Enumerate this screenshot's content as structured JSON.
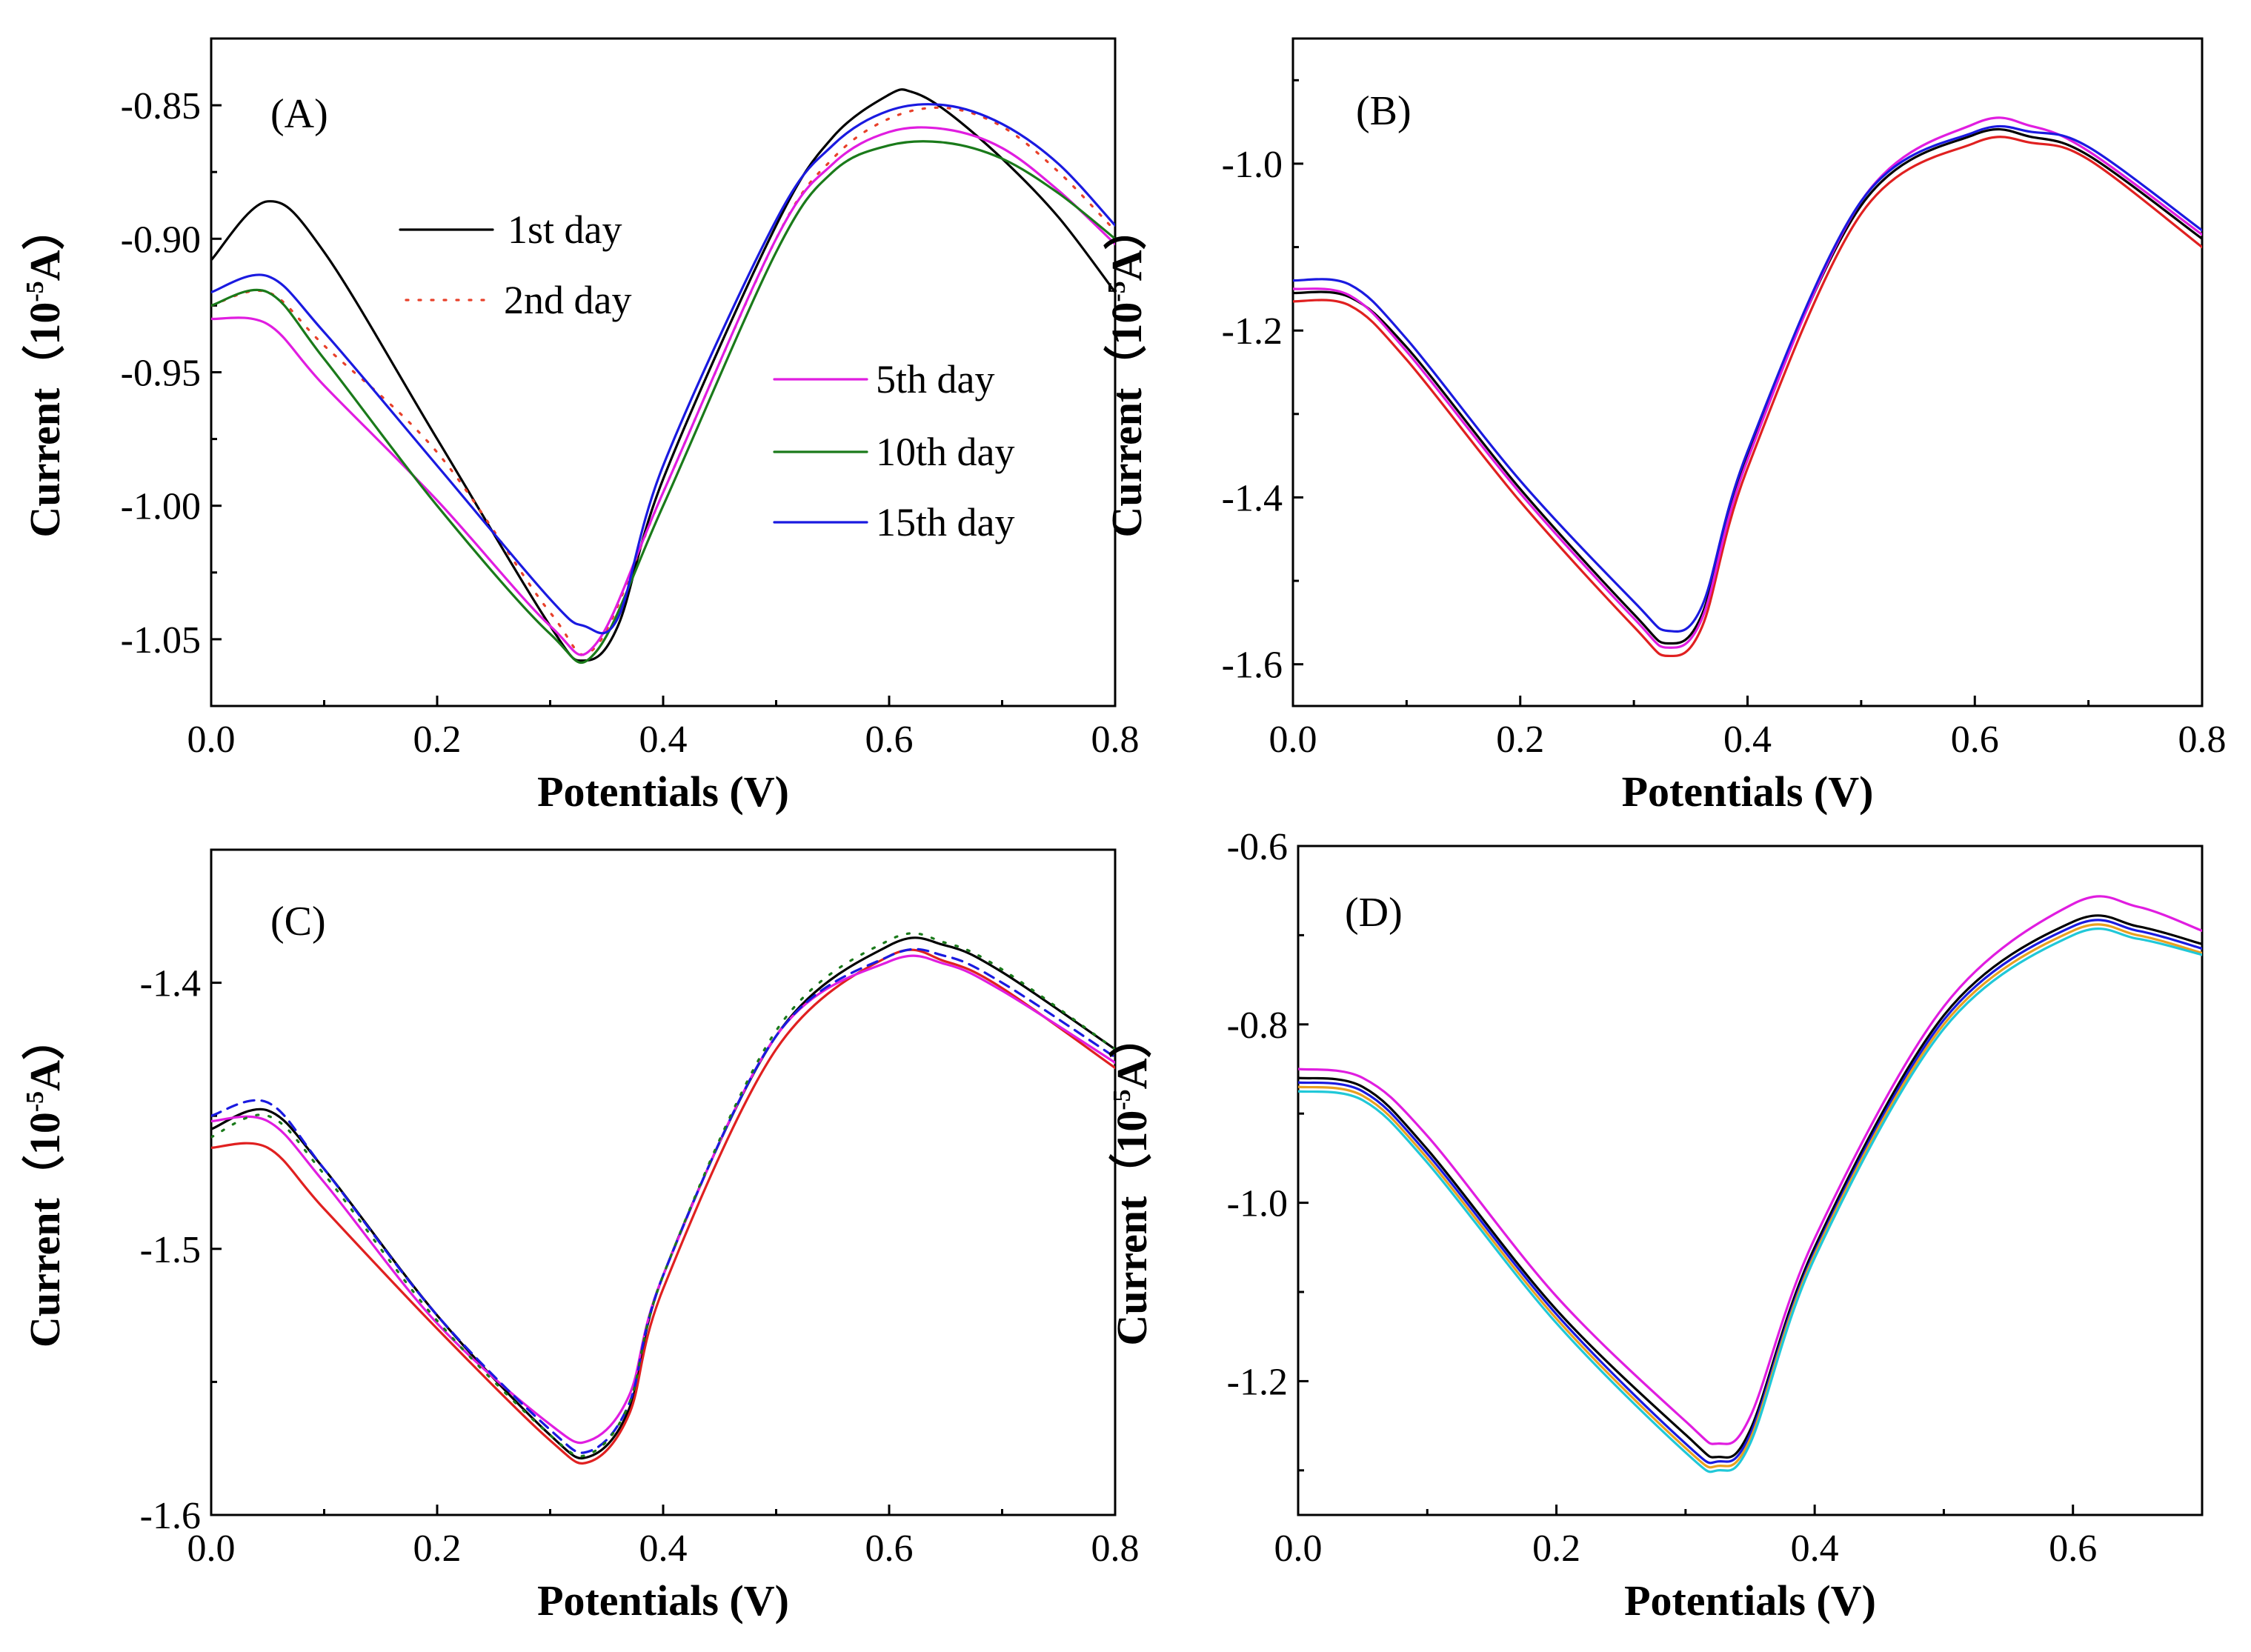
{
  "chart_data": [
    {
      "panel": "A",
      "type": "line",
      "label": "(A)",
      "xlabel": "Potentials (V)",
      "ylabel": "Current（10-5A）",
      "ylabel_base": "Current（10",
      "ylabel_exp": "-5",
      "ylabel_unit": "A）",
      "xlim": [
        0.0,
        0.8
      ],
      "ylim": [
        -1.075,
        -0.825
      ],
      "xticks": [
        0.0,
        0.2,
        0.4,
        0.6,
        0.8
      ],
      "xtick_labels": [
        "0.0",
        "0.2",
        "0.4",
        "0.6",
        "0.8"
      ],
      "yticks": [
        -1.05,
        -1.0,
        -0.95,
        -0.9,
        -0.85
      ],
      "ytick_labels": [
        "-1.05",
        "-1.00",
        "-0.95",
        "-0.90",
        "-0.85"
      ],
      "legend": {
        "placement": "center"
      },
      "series": [
        {
          "name": "1st day",
          "color": "#000000",
          "dash": "solid",
          "in_legend": true,
          "x": [
            0.0,
            0.05,
            0.1,
            0.2,
            0.3,
            0.33,
            0.36,
            0.4,
            0.5,
            0.55,
            0.6,
            0.62,
            0.65,
            0.7,
            0.75,
            0.8
          ],
          "y": [
            -0.908,
            -0.886,
            -0.905,
            -0.975,
            -1.045,
            -1.058,
            -1.045,
            -0.99,
            -0.895,
            -0.862,
            -0.846,
            -0.845,
            -0.852,
            -0.87,
            -0.892,
            -0.92
          ]
        },
        {
          "name": "2nd day",
          "color": "#e8402a",
          "dash": "dotted",
          "in_legend": true,
          "x": [
            0.0,
            0.05,
            0.1,
            0.2,
            0.3,
            0.34,
            0.4,
            0.5,
            0.55,
            0.6,
            0.65,
            0.7,
            0.75,
            0.8
          ],
          "y": [
            -0.925,
            -0.92,
            -0.94,
            -0.98,
            -1.04,
            -1.053,
            -0.995,
            -0.9,
            -0.87,
            -0.855,
            -0.851,
            -0.858,
            -0.875,
            -0.897
          ]
        },
        {
          "name": "5th day",
          "color": "#e01de0",
          "dash": "solid",
          "in_legend": true,
          "x": [
            0.0,
            0.05,
            0.1,
            0.2,
            0.3,
            0.34,
            0.4,
            0.5,
            0.55,
            0.6,
            0.65,
            0.7,
            0.75,
            0.8
          ],
          "y": [
            -0.93,
            -0.932,
            -0.955,
            -0.998,
            -1.045,
            -1.052,
            -0.995,
            -0.9,
            -0.872,
            -0.86,
            -0.859,
            -0.866,
            -0.882,
            -0.902
          ]
        },
        {
          "name": "10th day",
          "color": "#1a7a1a",
          "dash": "solid",
          "in_legend": true,
          "x": [
            0.0,
            0.05,
            0.1,
            0.2,
            0.3,
            0.34,
            0.4,
            0.5,
            0.55,
            0.6,
            0.65,
            0.7,
            0.75,
            0.8
          ],
          "y": [
            -0.925,
            -0.92,
            -0.945,
            -1.0,
            -1.048,
            -1.055,
            -1.0,
            -0.905,
            -0.875,
            -0.865,
            -0.864,
            -0.87,
            -0.883,
            -0.9
          ]
        },
        {
          "name": "15th day",
          "color": "#1a1ae0",
          "dash": "solid",
          "in_legend": true,
          "x": [
            0.0,
            0.05,
            0.1,
            0.2,
            0.3,
            0.33,
            0.36,
            0.4,
            0.5,
            0.55,
            0.6,
            0.65,
            0.7,
            0.75,
            0.8
          ],
          "y": [
            -0.92,
            -0.914,
            -0.935,
            -0.985,
            -1.035,
            -1.045,
            -1.042,
            -0.985,
            -0.893,
            -0.865,
            -0.852,
            -0.85,
            -0.857,
            -0.872,
            -0.895
          ]
        }
      ]
    },
    {
      "panel": "B",
      "type": "line",
      "label": "(B)",
      "xlabel": "Potentials (V)",
      "ylabel": "Current（10-5A）",
      "ylabel_base": "Current（10",
      "ylabel_exp": "-5",
      "ylabel_unit": "A）",
      "xlim": [
        0.0,
        0.8
      ],
      "ylim": [
        -1.65,
        -0.85
      ],
      "xticks": [
        0.0,
        0.2,
        0.4,
        0.6,
        0.8
      ],
      "xtick_labels": [
        "0.0",
        "0.2",
        "0.4",
        "0.6",
        "0.8"
      ],
      "yticks": [
        -1.6,
        -1.4,
        -1.2,
        -1.0
      ],
      "ytick_labels": [
        "-1.6",
        "-1.4",
        "-1.2",
        "-1.0"
      ],
      "series": [
        {
          "name": "",
          "color": "#000000",
          "dash": "solid",
          "x": [
            0.0,
            0.05,
            0.1,
            0.2,
            0.3,
            0.33,
            0.36,
            0.4,
            0.5,
            0.6,
            0.65,
            0.7,
            0.8
          ],
          "y": [
            -1.155,
            -1.16,
            -1.22,
            -1.39,
            -1.54,
            -1.575,
            -1.54,
            -1.35,
            -1.05,
            -0.965,
            -0.968,
            -0.99,
            -1.09
          ]
        },
        {
          "name": "",
          "color": "#e02020",
          "dash": "solid",
          "x": [
            0.0,
            0.05,
            0.1,
            0.2,
            0.3,
            0.33,
            0.36,
            0.4,
            0.5,
            0.6,
            0.65,
            0.7,
            0.8
          ],
          "y": [
            -1.165,
            -1.17,
            -1.235,
            -1.405,
            -1.555,
            -1.59,
            -1.555,
            -1.365,
            -1.06,
            -0.975,
            -0.975,
            -0.995,
            -1.1
          ]
        },
        {
          "name": "",
          "color": "#e01de0",
          "dash": "solid",
          "x": [
            0.0,
            0.05,
            0.1,
            0.2,
            0.3,
            0.33,
            0.36,
            0.4,
            0.5,
            0.6,
            0.65,
            0.7,
            0.8
          ],
          "y": [
            -1.15,
            -1.158,
            -1.225,
            -1.395,
            -1.545,
            -1.58,
            -1.545,
            -1.355,
            -1.045,
            -0.952,
            -0.955,
            -0.985,
            -1.085
          ]
        },
        {
          "name": "",
          "color": "#1a1ae0",
          "dash": "solid",
          "x": [
            0.0,
            0.05,
            0.1,
            0.2,
            0.3,
            0.33,
            0.36,
            0.4,
            0.5,
            0.6,
            0.65,
            0.7,
            0.8
          ],
          "y": [
            -1.14,
            -1.145,
            -1.21,
            -1.38,
            -1.525,
            -1.56,
            -1.53,
            -1.345,
            -1.045,
            -0.962,
            -0.962,
            -0.98,
            -1.08
          ]
        }
      ]
    },
    {
      "panel": "C",
      "type": "line",
      "label": "(C)",
      "xlabel": "Potentials (V)",
      "ylabel": "Current（10-5A）",
      "ylabel_base": "Current（10",
      "ylabel_exp": "-5",
      "ylabel_unit": "A）",
      "xlim": [
        0.0,
        0.8
      ],
      "ylim": [
        -1.6,
        -1.35
      ],
      "xticks": [
        0.0,
        0.2,
        0.4,
        0.6,
        0.8
      ],
      "xtick_labels": [
        "0.0",
        "0.2",
        "0.4",
        "0.6",
        "0.8"
      ],
      "yticks": [
        -1.6,
        -1.5,
        -1.4
      ],
      "ytick_labels": [
        "-1.6",
        "-1.5",
        "-1.4"
      ],
      "series": [
        {
          "name": "",
          "color": "#000000",
          "dash": "solid",
          "x": [
            0.0,
            0.05,
            0.1,
            0.2,
            0.3,
            0.335,
            0.37,
            0.4,
            0.5,
            0.6,
            0.65,
            0.7,
            0.8
          ],
          "y": [
            -1.455,
            -1.448,
            -1.47,
            -1.525,
            -1.57,
            -1.578,
            -1.56,
            -1.51,
            -1.42,
            -1.386,
            -1.386,
            -1.396,
            -1.425
          ]
        },
        {
          "name": "",
          "color": "#e02020",
          "dash": "solid",
          "x": [
            0.0,
            0.05,
            0.1,
            0.2,
            0.3,
            0.335,
            0.37,
            0.4,
            0.5,
            0.6,
            0.65,
            0.7,
            0.8
          ],
          "y": [
            -1.462,
            -1.462,
            -1.485,
            -1.53,
            -1.572,
            -1.58,
            -1.562,
            -1.515,
            -1.425,
            -1.39,
            -1.392,
            -1.402,
            -1.432
          ]
        },
        {
          "name": "",
          "color": "#e01de0",
          "dash": "solid",
          "x": [
            0.0,
            0.05,
            0.1,
            0.2,
            0.3,
            0.335,
            0.37,
            0.4,
            0.5,
            0.6,
            0.65,
            0.7,
            0.8
          ],
          "y": [
            -1.452,
            -1.452,
            -1.475,
            -1.528,
            -1.566,
            -1.572,
            -1.555,
            -1.51,
            -1.42,
            -1.392,
            -1.393,
            -1.403,
            -1.43
          ]
        },
        {
          "name": "",
          "color": "#1a1ae0",
          "dash": "dashed",
          "x": [
            0.0,
            0.05,
            0.1,
            0.2,
            0.3,
            0.335,
            0.37,
            0.4,
            0.5,
            0.6,
            0.65,
            0.7,
            0.8
          ],
          "y": [
            -1.45,
            -1.445,
            -1.47,
            -1.525,
            -1.568,
            -1.576,
            -1.558,
            -1.51,
            -1.42,
            -1.39,
            -1.39,
            -1.4,
            -1.428
          ]
        },
        {
          "name": "",
          "color": "#1a7a1a",
          "dash": "dotted",
          "x": [
            0.0,
            0.05,
            0.1,
            0.2,
            0.3,
            0.335,
            0.37,
            0.4,
            0.5,
            0.6,
            0.65,
            0.7,
            0.8
          ],
          "y": [
            -1.458,
            -1.45,
            -1.472,
            -1.527,
            -1.57,
            -1.577,
            -1.558,
            -1.51,
            -1.418,
            -1.384,
            -1.385,
            -1.395,
            -1.425
          ]
        }
      ]
    },
    {
      "panel": "D",
      "type": "line",
      "label": "(D)",
      "xlabel": "Potentials (V)",
      "ylabel": "Current（10-5A）",
      "ylabel_base": "Current（10",
      "ylabel_exp": "-5",
      "ylabel_unit": "A）",
      "xlim": [
        0.0,
        0.7
      ],
      "ylim": [
        -1.35,
        -0.6
      ],
      "xticks": [
        0.0,
        0.2,
        0.4,
        0.6
      ],
      "xtick_labels": [
        "0.0",
        "0.2",
        "0.4",
        "0.6"
      ],
      "yticks": [
        -1.2,
        -1.0,
        -0.8,
        -0.6
      ],
      "ytick_labels": [
        "-1.2",
        "-1.0",
        "-0.8",
        "-0.6"
      ],
      "series": [
        {
          "name": "",
          "color": "#000000",
          "dash": "solid",
          "x": [
            0.0,
            0.05,
            0.1,
            0.2,
            0.3,
            0.325,
            0.35,
            0.4,
            0.5,
            0.6,
            0.65,
            0.7
          ],
          "y": [
            -0.86,
            -0.87,
            -0.94,
            -1.12,
            -1.26,
            -1.285,
            -1.255,
            -1.05,
            -0.79,
            -0.685,
            -0.69,
            -0.71
          ]
        },
        {
          "name": "",
          "color": "#e01de0",
          "dash": "solid",
          "x": [
            0.0,
            0.05,
            0.1,
            0.2,
            0.3,
            0.325,
            0.35,
            0.4,
            0.5,
            0.6,
            0.65,
            0.7
          ],
          "y": [
            -0.85,
            -0.86,
            -0.925,
            -1.105,
            -1.245,
            -1.27,
            -1.24,
            -1.04,
            -0.78,
            -0.665,
            -0.668,
            -0.695
          ]
        },
        {
          "name": "",
          "color": "#1a1ae0",
          "dash": "solid",
          "x": [
            0.0,
            0.05,
            0.1,
            0.2,
            0.3,
            0.325,
            0.35,
            0.4,
            0.5,
            0.6,
            0.65,
            0.7
          ],
          "y": [
            -0.865,
            -0.875,
            -0.945,
            -1.125,
            -1.27,
            -1.29,
            -1.26,
            -1.055,
            -0.795,
            -0.69,
            -0.695,
            -0.715
          ]
        },
        {
          "name": "",
          "color": "#e8a020",
          "dash": "solid",
          "x": [
            0.0,
            0.05,
            0.1,
            0.2,
            0.3,
            0.325,
            0.35,
            0.4,
            0.5,
            0.6,
            0.65,
            0.7
          ],
          "y": [
            -0.87,
            -0.88,
            -0.95,
            -1.13,
            -1.275,
            -1.295,
            -1.265,
            -1.058,
            -0.8,
            -0.695,
            -0.7,
            -0.72
          ]
        },
        {
          "name": "",
          "color": "#20c8d8",
          "dash": "solid",
          "x": [
            0.0,
            0.05,
            0.1,
            0.2,
            0.3,
            0.325,
            0.35,
            0.4,
            0.5,
            0.6,
            0.65,
            0.7
          ],
          "y": [
            -0.875,
            -0.885,
            -0.955,
            -1.135,
            -1.28,
            -1.3,
            -1.27,
            -1.062,
            -0.805,
            -0.7,
            -0.704,
            -0.722
          ]
        }
      ]
    }
  ]
}
